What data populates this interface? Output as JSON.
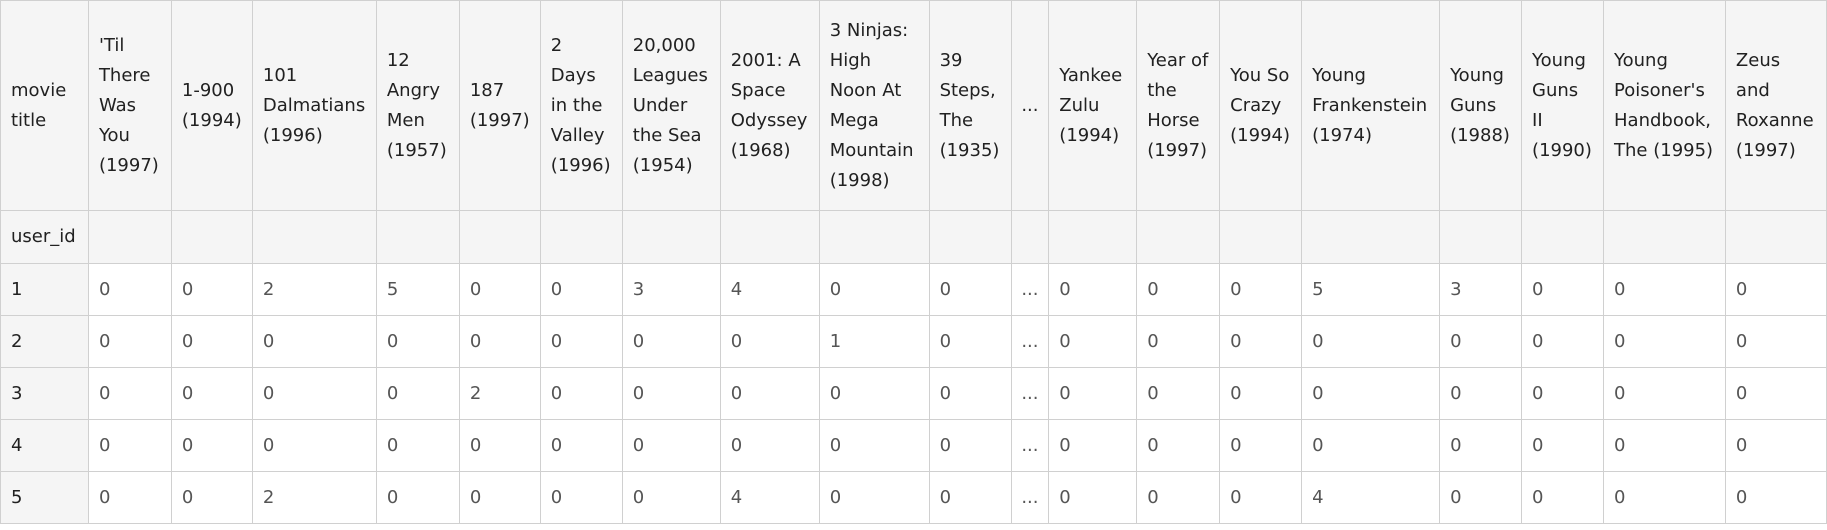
{
  "table": {
    "columns_label": "movie title",
    "index_label": "user_id",
    "ellipsis": "...",
    "left_headers": [
      "'Til There Was You (1997)",
      "1-900 (1994)",
      "101 Dalmatians (1996)",
      "12 Angry Men (1957)",
      "187 (1997)",
      "2 Days in the Valley (1996)",
      "20,000 Leagues Under the Sea (1954)",
      "2001: A Space Odyssey (1968)",
      "3 Ninjas: High Noon At Mega Mountain (1998)",
      "39 Steps, The (1935)"
    ],
    "right_headers": [
      "Yankee Zulu (1994)",
      "Year of the Horse (1997)",
      "You So Crazy (1994)",
      "Young Frankenstein (1974)",
      "Young Guns (1988)",
      "Young Guns II (1990)",
      "Young Poisoner's Handbook, The (1995)",
      "Zeus and Roxanne (1997)"
    ],
    "rows": [
      {
        "id": "1",
        "left": [
          "0",
          "0",
          "2",
          "5",
          "0",
          "0",
          "3",
          "4",
          "0",
          "0"
        ],
        "right": [
          "0",
          "0",
          "0",
          "5",
          "3",
          "0",
          "0",
          "0"
        ]
      },
      {
        "id": "2",
        "left": [
          "0",
          "0",
          "0",
          "0",
          "0",
          "0",
          "0",
          "0",
          "1",
          "0"
        ],
        "right": [
          "0",
          "0",
          "0",
          "0",
          "0",
          "0",
          "0",
          "0"
        ]
      },
      {
        "id": "3",
        "left": [
          "0",
          "0",
          "0",
          "0",
          "2",
          "0",
          "0",
          "0",
          "0",
          "0"
        ],
        "right": [
          "0",
          "0",
          "0",
          "0",
          "0",
          "0",
          "0",
          "0"
        ]
      },
      {
        "id": "4",
        "left": [
          "0",
          "0",
          "0",
          "0",
          "0",
          "0",
          "0",
          "0",
          "0",
          "0"
        ],
        "right": [
          "0",
          "0",
          "0",
          "0",
          "0",
          "0",
          "0",
          "0"
        ]
      },
      {
        "id": "5",
        "left": [
          "0",
          "0",
          "2",
          "0",
          "0",
          "0",
          "0",
          "4",
          "0",
          "0"
        ],
        "right": [
          "0",
          "0",
          "0",
          "4",
          "0",
          "0",
          "0",
          "0"
        ]
      }
    ]
  }
}
